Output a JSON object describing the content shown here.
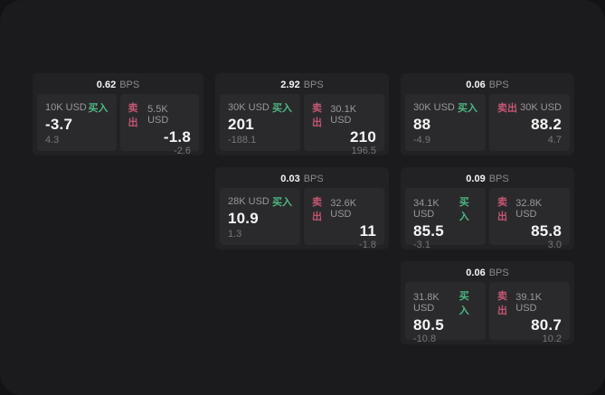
{
  "page": {
    "bps_suffix": "BPS",
    "buy_label": "买入",
    "sell_label": "卖出"
  },
  "colors": {
    "buy": "#4db881",
    "sell": "#c35672",
    "background": "#1b1b1d",
    "card": "#222225",
    "panel": "#2a2a2d",
    "value_text": "#f5f5f5",
    "muted_text": "#98989b"
  },
  "cards": [
    {
      "row": 1,
      "col": 1,
      "bps": "0.62",
      "buy": {
        "size": "10K USD",
        "value": "-3.7",
        "delta": "4.3"
      },
      "sell": {
        "size": "5.5K USD",
        "value": "-1.8",
        "delta": "-2.6"
      }
    },
    {
      "row": 1,
      "col": 2,
      "bps": "2.92",
      "buy": {
        "size": "30K USD",
        "value": "201",
        "delta": "-188.1"
      },
      "sell": {
        "size": "30.1K USD",
        "value": "210",
        "delta": "196.5"
      }
    },
    {
      "row": 1,
      "col": 3,
      "bps": "0.06",
      "buy": {
        "size": "30K USD",
        "value": "88",
        "delta": "-4.9"
      },
      "sell": {
        "size": "30K USD",
        "value": "88.2",
        "delta": "4.7"
      }
    },
    {
      "row": 2,
      "col": 2,
      "bps": "0.03",
      "buy": {
        "size": "28K USD",
        "value": "10.9",
        "delta": "1.3"
      },
      "sell": {
        "size": "32.6K USD",
        "value": "11",
        "delta": "-1.8"
      }
    },
    {
      "row": 2,
      "col": 3,
      "bps": "0.09",
      "buy": {
        "size": "34.1K USD",
        "value": "85.5",
        "delta": "-3.1"
      },
      "sell": {
        "size": "32.8K USD",
        "value": "85.8",
        "delta": "3.0"
      }
    },
    {
      "row": 3,
      "col": 3,
      "bps": "0.06",
      "buy": {
        "size": "31.8K USD",
        "value": "80.5",
        "delta": "-10.8"
      },
      "sell": {
        "size": "39.1K USD",
        "value": "80.7",
        "delta": "10.2"
      }
    }
  ]
}
